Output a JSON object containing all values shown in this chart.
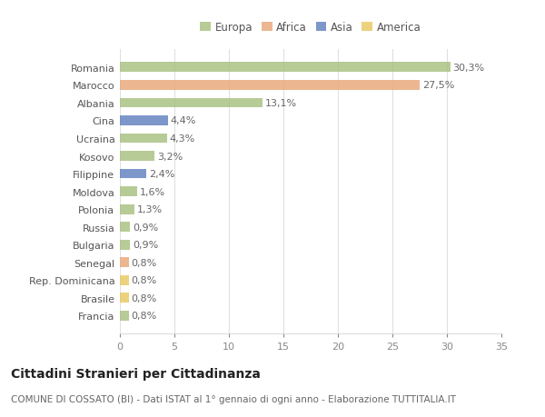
{
  "categories": [
    "Romania",
    "Marocco",
    "Albania",
    "Cina",
    "Ucraina",
    "Kosovo",
    "Filippine",
    "Moldova",
    "Polonia",
    "Russia",
    "Bulgaria",
    "Senegal",
    "Rep. Dominicana",
    "Brasile",
    "Francia"
  ],
  "values": [
    30.3,
    27.5,
    13.1,
    4.4,
    4.3,
    3.2,
    2.4,
    1.6,
    1.3,
    0.9,
    0.9,
    0.8,
    0.8,
    0.8,
    0.8
  ],
  "labels": [
    "30,3%",
    "27,5%",
    "13,1%",
    "4,4%",
    "4,3%",
    "3,2%",
    "2,4%",
    "1,6%",
    "1,3%",
    "0,9%",
    "0,9%",
    "0,8%",
    "0,8%",
    "0,8%",
    "0,8%"
  ],
  "continents": [
    "Europa",
    "Africa",
    "Europa",
    "Asia",
    "Europa",
    "Europa",
    "Asia",
    "Europa",
    "Europa",
    "Europa",
    "Europa",
    "Africa",
    "America",
    "America",
    "Europa"
  ],
  "continent_colors": {
    "Europa": "#a8c080",
    "Africa": "#e8a878",
    "Asia": "#6080c0",
    "America": "#e8c860"
  },
  "legend_order": [
    "Europa",
    "Africa",
    "Asia",
    "America"
  ],
  "title": "Cittadini Stranieri per Cittadinanza",
  "subtitle": "COMUNE DI COSSATO (BI) - Dati ISTAT al 1° gennaio di ogni anno - Elaborazione TUTTITALIA.IT",
  "xlim": [
    0,
    35
  ],
  "xticks": [
    0,
    5,
    10,
    15,
    20,
    25,
    30,
    35
  ],
  "background_color": "#ffffff",
  "plot_bg_color": "#ffffff",
  "grid_color": "#e0e0e0",
  "bar_height": 0.55,
  "label_fontsize": 8,
  "title_fontsize": 10,
  "subtitle_fontsize": 7.5,
  "tick_fontsize": 8,
  "ytick_fontsize": 8
}
